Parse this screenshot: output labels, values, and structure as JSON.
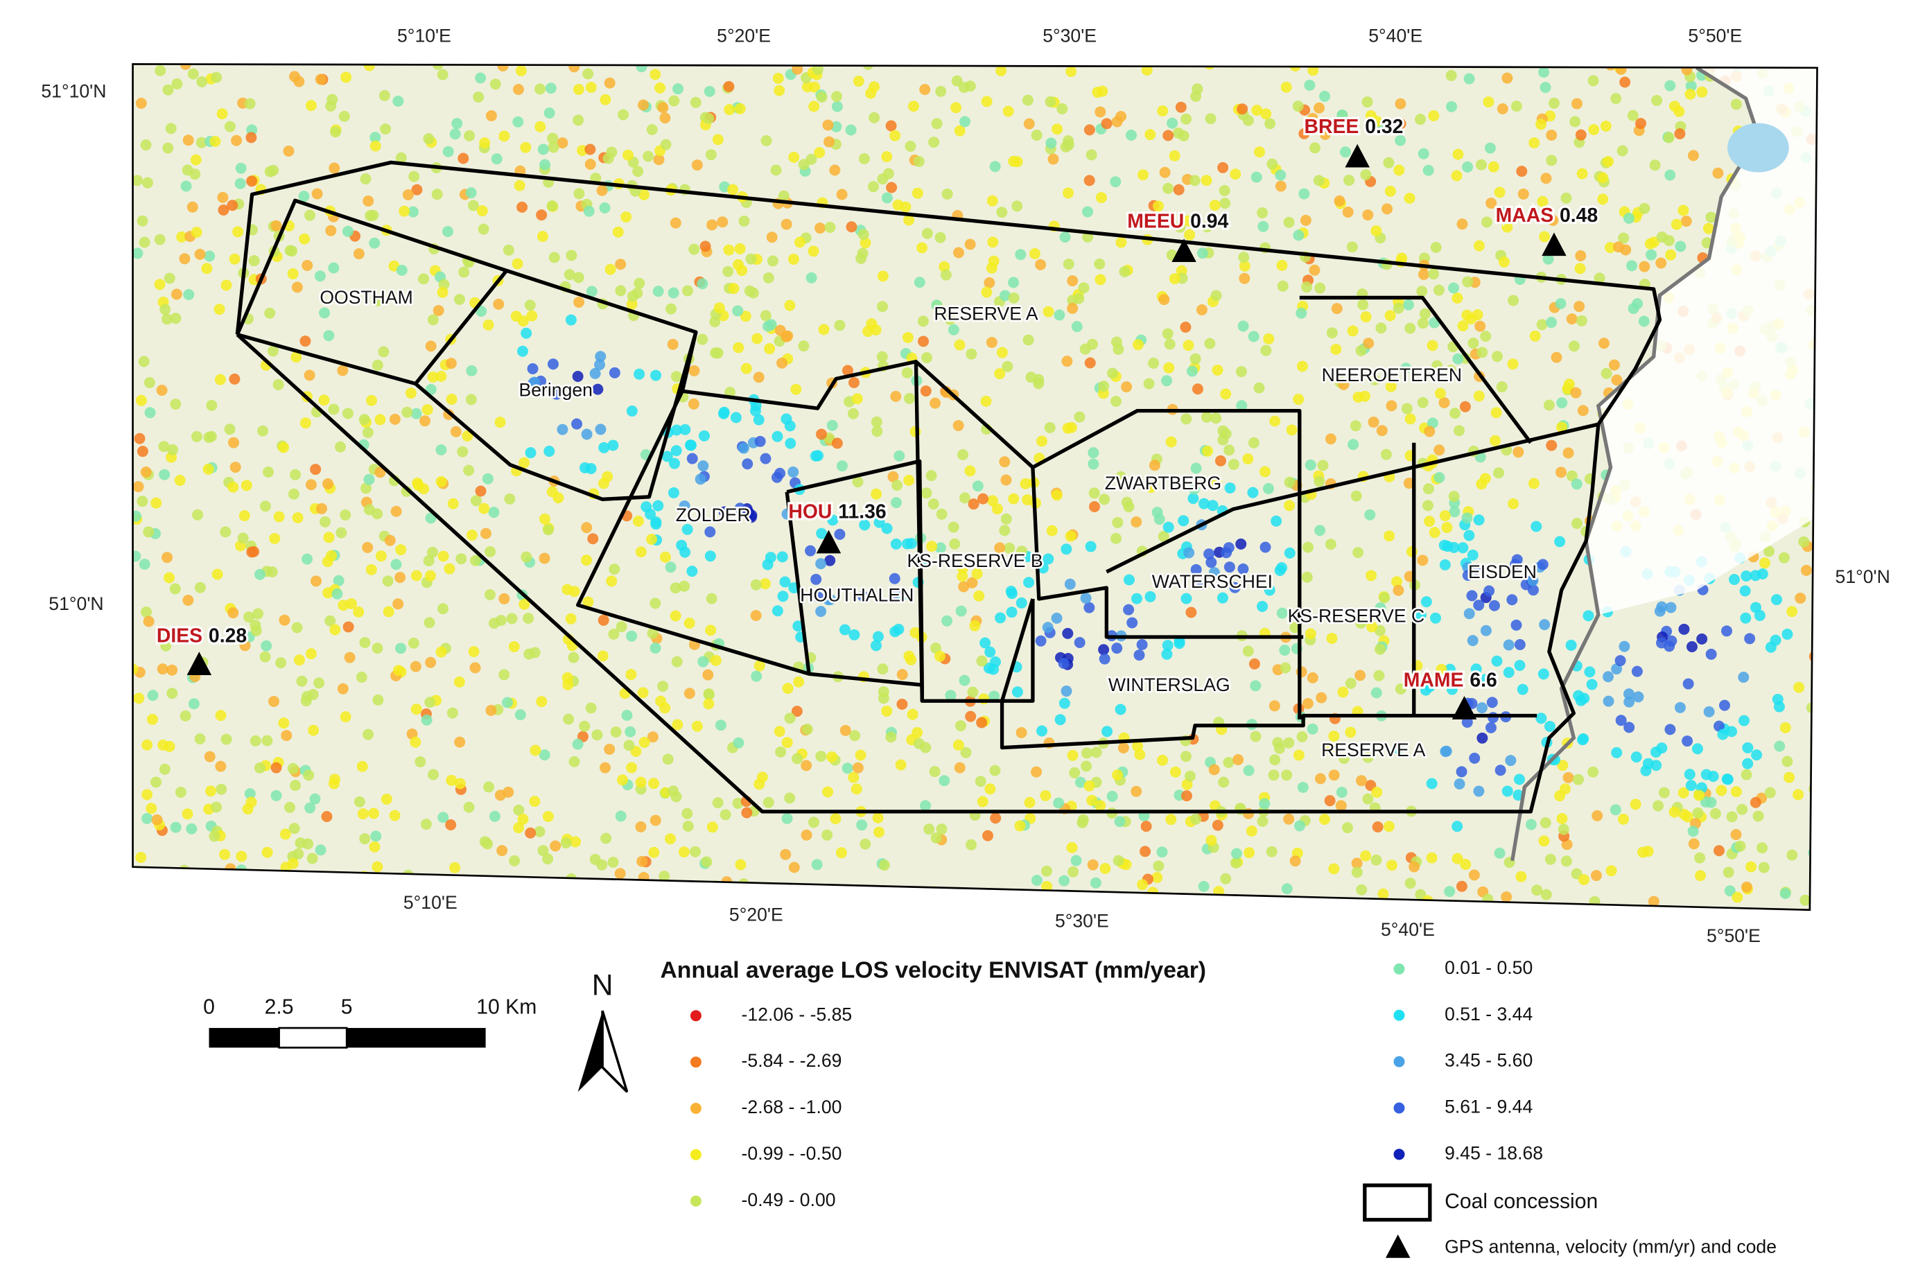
{
  "map": {
    "graticule": {
      "top": [
        "5°10'E",
        "5°20'E",
        "5°30'E",
        "5°40'E",
        "5°50'E"
      ],
      "bottom": [
        "5°10'E",
        "5°20'E",
        "5°30'E",
        "5°40'E",
        "5°50'E"
      ],
      "left": [
        "51°10'N",
        "51°0'N"
      ],
      "right": [
        "51°0'N"
      ]
    },
    "concessions": [
      "OOSTHAM",
      "Beringen",
      "RESERVE A",
      "NEEROETEREN",
      "ZOLDER",
      "ZWARTBERG",
      "KS-RESERVE B",
      "WATERSCHEI",
      "EISDEN",
      "HOUTHALEN",
      "KS-RESERVE C",
      "WINTERSLAG",
      "RESERVE A"
    ],
    "gps_stations": [
      {
        "code": "BREE",
        "velocity": 0.32
      },
      {
        "code": "MEEU",
        "velocity": 0.94
      },
      {
        "code": "MAAS",
        "velocity": 0.48
      },
      {
        "code": "HOU",
        "velocity": 11.36
      },
      {
        "code": "DIES",
        "velocity": 0.28
      },
      {
        "code": "MAME",
        "velocity": 6.6
      }
    ],
    "legend": {
      "title": "Annual average LOS velocity ENVISAT (mm/year)",
      "classes": [
        {
          "label": "-12.06 - -5.85",
          "color": "#e31a1c"
        },
        {
          "label": "-5.84 - -2.69",
          "color": "#f47b20"
        },
        {
          "label": "-2.68 - -1.00",
          "color": "#f9b233"
        },
        {
          "label": "-0.99 - -0.50",
          "color": "#f4ec1e"
        },
        {
          "label": "-0.49 - 0.00",
          "color": "#c6e65a"
        },
        {
          "label": "0.01 - 0.50",
          "color": "#7fe6b0"
        },
        {
          "label": "0.51 - 3.44",
          "color": "#1ee0f0"
        },
        {
          "label": "3.45 - 5.60",
          "color": "#4aa3e6"
        },
        {
          "label": "5.61 - 9.44",
          "color": "#3560e0"
        },
        {
          "label": "9.45 - 18.68",
          "color": "#1020b8"
        }
      ],
      "concession": "Coal concession",
      "gps": "GPS antenna, velocity (mm/yr) and code"
    },
    "scale_bar": [
      "0",
      "2.5",
      "5",
      "10 Km"
    ],
    "north": "N"
  }
}
